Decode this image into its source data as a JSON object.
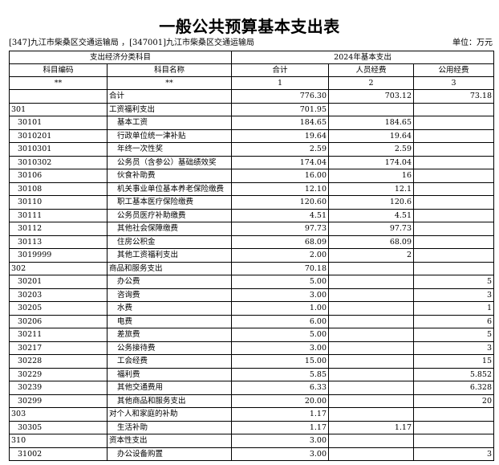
{
  "title": "一般公共预算基本支出表",
  "unit_info": "[347]九江市柴桑区交通运输局 ，[347001]九江市柴桑区交通运输局",
  "unit_label": "单位：万元",
  "header": {
    "group1": "支出经济分类科目",
    "group2": "2024年基本支出",
    "cols": [
      "科目编码",
      "科目名称",
      "合计",
      "人员经费",
      "公用经费"
    ],
    "index": [
      "**",
      "**",
      "1",
      "2",
      "3"
    ]
  },
  "rows": [
    {
      "code": "",
      "name": "合计",
      "total": "776.30",
      "personnel": "703.12",
      "public": "73.18",
      "level": 0
    },
    {
      "code": "301",
      "name": "工资福利支出",
      "total": "701.95",
      "personnel": "",
      "public": "",
      "level": 0
    },
    {
      "code": "30101",
      "name": "基本工资",
      "total": "184.65",
      "personnel": "184.65",
      "public": "",
      "level": 1
    },
    {
      "code": "3010201",
      "name": "行政单位统一津补贴",
      "total": "19.64",
      "personnel": "19.64",
      "public": "",
      "level": 1
    },
    {
      "code": "3010301",
      "name": "年终一次性奖",
      "total": "2.59",
      "personnel": "2.59",
      "public": "",
      "level": 1
    },
    {
      "code": "3010302",
      "name": "公务员（含参公）基础绩效奖",
      "total": "174.04",
      "personnel": "174.04",
      "public": "",
      "level": 1
    },
    {
      "code": "30106",
      "name": "伙食补助费",
      "total": "16.00",
      "personnel": "16",
      "public": "",
      "level": 1
    },
    {
      "code": "30108",
      "name": "机关事业单位基本养老保险缴费",
      "total": "12.10",
      "personnel": "12.1",
      "public": "",
      "level": 1
    },
    {
      "code": "30110",
      "name": "职工基本医疗保险缴费",
      "total": "120.60",
      "personnel": "120.6",
      "public": "",
      "level": 1
    },
    {
      "code": "30111",
      "name": "公务员医疗补助缴费",
      "total": "4.51",
      "personnel": "4.51",
      "public": "",
      "level": 1
    },
    {
      "code": "30112",
      "name": "其他社会保障缴费",
      "total": "97.73",
      "personnel": "97.73",
      "public": "",
      "level": 1
    },
    {
      "code": "30113",
      "name": "住房公积金",
      "total": "68.09",
      "personnel": "68.09",
      "public": "",
      "level": 1
    },
    {
      "code": "3019999",
      "name": "其他工资福利支出",
      "total": "2.00",
      "personnel": "2",
      "public": "",
      "level": 1
    },
    {
      "code": "302",
      "name": "商品和服务支出",
      "total": "70.18",
      "personnel": "",
      "public": "",
      "level": 0
    },
    {
      "code": "30201",
      "name": "办公费",
      "total": "5.00",
      "personnel": "",
      "public": "5",
      "level": 1
    },
    {
      "code": "30203",
      "name": "咨询费",
      "total": "3.00",
      "personnel": "",
      "public": "3",
      "level": 1
    },
    {
      "code": "30205",
      "name": "水费",
      "total": "1.00",
      "personnel": "",
      "public": "1",
      "level": 1
    },
    {
      "code": "30206",
      "name": "电费",
      "total": "6.00",
      "personnel": "",
      "public": "6",
      "level": 1
    },
    {
      "code": "30211",
      "name": "差旅费",
      "total": "5.00",
      "personnel": "",
      "public": "5",
      "level": 1
    },
    {
      "code": "30217",
      "name": "公务接待费",
      "total": "3.00",
      "personnel": "",
      "public": "3",
      "level": 1
    },
    {
      "code": "30228",
      "name": "工会经费",
      "total": "15.00",
      "personnel": "",
      "public": "15",
      "level": 1
    },
    {
      "code": "30229",
      "name": "福利费",
      "total": "5.85",
      "personnel": "",
      "public": "5.852",
      "level": 1
    },
    {
      "code": "30239",
      "name": "其他交通费用",
      "total": "6.33",
      "personnel": "",
      "public": "6.328",
      "level": 1
    },
    {
      "code": "30299",
      "name": "其他商品和服务支出",
      "total": "20.00",
      "personnel": "",
      "public": "20",
      "level": 1
    },
    {
      "code": "303",
      "name": "对个人和家庭的补助",
      "total": "1.17",
      "personnel": "",
      "public": "",
      "level": 0
    },
    {
      "code": "30305",
      "name": "生活补助",
      "total": "1.17",
      "personnel": "1.17",
      "public": "",
      "level": 1
    },
    {
      "code": "310",
      "name": "资本性支出",
      "total": "3.00",
      "personnel": "",
      "public": "",
      "level": 0
    },
    {
      "code": "31002",
      "name": "办公设备购置",
      "total": "3.00",
      "personnel": "",
      "public": "3",
      "level": 1
    }
  ]
}
